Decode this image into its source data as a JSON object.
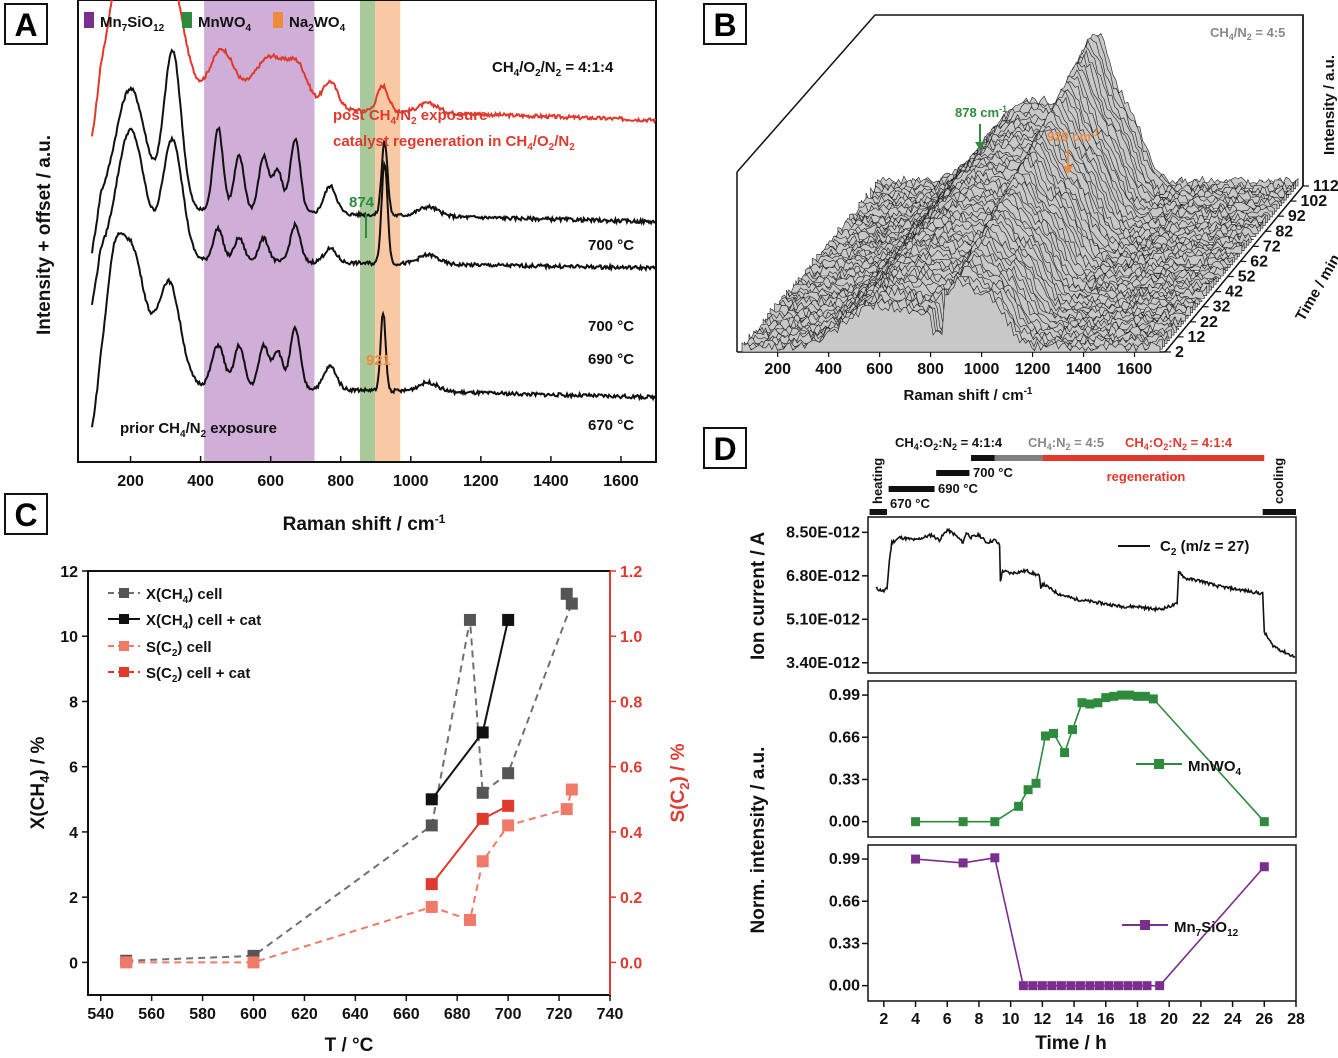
{
  "panels": {
    "a": "A",
    "b": "B",
    "c": "C",
    "d": "D"
  },
  "colors": {
    "red": "#e03a2f",
    "black": "#111111",
    "gray": "#707070",
    "green": "#2e8b3e",
    "orange": "#f08a3c",
    "purple": "#7a2f8e",
    "salmon": "#ef7a68",
    "mn7sio12_band": "#cfaed8",
    "mnwo4_band": "#a9c99a",
    "na2wo4_band": "#f8c9a4"
  },
  "panel_a": {
    "legend": [
      {
        "label": "Mn7SiO12",
        "color": "#7a2f8e"
      },
      {
        "label": "MnWO4",
        "color": "#2e8b3e"
      },
      {
        "label": "Na2WO4",
        "color": "#f08a3c"
      }
    ],
    "condition": "CH4/O2/N2 = 4:1:4",
    "red_note_1": "post CH4/N2 exposure",
    "red_note_2": "catalyst regeneration in CH4/O2/N2",
    "bottom_note": "prior CH4/N2 exposure",
    "peak_874": "874",
    "peak_921": "921",
    "temp_labels": [
      "700 °C",
      "700 °C",
      "690 °C",
      "670 °C"
    ],
    "xlabel": "Raman shift / cm-1",
    "ylabel": "Intensity + offset / a.u."
  },
  "panel_b": {
    "condition": "CH4/N2 = 4:5",
    "peak_878": "878 cm-1",
    "peak_929": "929 cm-1",
    "xlabel": "Raman shift / cm-1",
    "ylabel": "Intensity / a.u.",
    "timelabel": "Time / min",
    "xticks": [
      "200",
      "400",
      "600",
      "800",
      "1000",
      "1200",
      "1400",
      "1600"
    ],
    "timeticks": [
      "2",
      "12",
      "22",
      "32",
      "42",
      "52",
      "62",
      "72",
      "82",
      "92",
      "102",
      "112"
    ]
  },
  "panel_c": {
    "xlabel": "T / °C",
    "ylabel_left": "X(CH4) / %",
    "ylabel_right": "S(C2) / %",
    "legend": [
      "X(CH4) cell",
      "X(CH4) cell + cat",
      "S(C2) cell",
      "S(C2) cell + cat"
    ]
  },
  "panel_d": {
    "seg_labels": {
      "c1": "CH4:O2:N2 = 4:1:4",
      "c2": "CH4:N2 = 4:5",
      "c3": "CH4:O2:N2 = 4:1:4",
      "heating": "heating",
      "cooling": "cooling",
      "regeneration": "regeneration",
      "t670": "670 °C",
      "t690": "690 °C",
      "t700": "700 °C"
    },
    "ion_ylabel": "Ion current / A",
    "ion_legend": "C2 (m/z = 27)",
    "norm_ylabel": "Norm. intensity / a.u.",
    "mnwo4_legend": "MnWO4",
    "mn7_legend": "Mn7SiO12",
    "xlabel": "Time / h"
  },
  "chart_data": [
    {
      "panel": "A",
      "type": "line",
      "xlabel": "Raman shift / cm-1",
      "ylabel": "Intensity + offset / a.u.",
      "xlim": [
        50,
        1700
      ],
      "xticks": [
        200,
        400,
        600,
        800,
        1000,
        1200,
        1400,
        1600
      ],
      "bands": [
        {
          "name": "Mn7SiO12",
          "from": 410,
          "to": 725
        },
        {
          "name": "MnWO4",
          "from": 855,
          "to": 898
        },
        {
          "name": "Na2WO4",
          "from": 898,
          "to": 970
        }
      ],
      "series": [
        {
          "name": "700 °C",
          "color": "#e03a2f",
          "offset": 0.74,
          "peaks": [
            [
              230,
              0.28,
              80
            ],
            [
              310,
              0.22,
              60
            ],
            [
              170,
              0.16,
              50
            ],
            [
              460,
              0.12,
              50
            ],
            [
              600,
              0.11,
              70
            ],
            [
              680,
              0.07,
              40
            ],
            [
              770,
              0.06,
              30
            ],
            [
              920,
              0.055,
              22
            ],
            [
              1050,
              0.02,
              40
            ]
          ],
          "base": 0.04
        },
        {
          "name": "700 °C",
          "color": "#111111",
          "offset": 0.52,
          "peaks": [
            [
              200,
              0.26,
              60
            ],
            [
              320,
              0.34,
              35
            ],
            [
              450,
              0.18,
              20
            ],
            [
              510,
              0.12,
              20
            ],
            [
              580,
              0.12,
              20
            ],
            [
              620,
              0.09,
              20
            ],
            [
              670,
              0.16,
              20
            ],
            [
              770,
              0.06,
              25
            ],
            [
              925,
              0.16,
              12
            ],
            [
              1050,
              0.02,
              40
            ]
          ],
          "base": 0.03
        },
        {
          "name": "690 °C",
          "color": "#111111",
          "offset": 0.42,
          "peaks": [
            [
              200,
              0.28,
              55
            ],
            [
              320,
              0.26,
              40
            ],
            [
              450,
              0.07,
              20
            ],
            [
              510,
              0.05,
              20
            ],
            [
              580,
              0.05,
              20
            ],
            [
              670,
              0.08,
              20
            ],
            [
              770,
              0.03,
              25
            ],
            [
              925,
              0.22,
              12
            ],
            [
              1050,
              0.02,
              40
            ]
          ],
          "base": 0.02
        },
        {
          "name": "670 °C",
          "color": "#111111",
          "offset": 0.14,
          "peaks": [
            [
              150,
              0.16,
              30
            ],
            [
              200,
              0.3,
              55
            ],
            [
              310,
              0.22,
              45
            ],
            [
              450,
              0.09,
              25
            ],
            [
              510,
              0.09,
              20
            ],
            [
              580,
              0.09,
              20
            ],
            [
              620,
              0.08,
              20
            ],
            [
              670,
              0.13,
              20
            ],
            [
              770,
              0.05,
              25
            ],
            [
              921,
              0.17,
              10
            ],
            [
              1050,
              0.02,
              40
            ]
          ],
          "base": 0.03
        }
      ]
    },
    {
      "panel": "C",
      "type": "line",
      "xlabel": "T / °C",
      "ylabel": "X(CH4) / %",
      "y2label": "S(C2) / %",
      "xlim": [
        535,
        740
      ],
      "ylim": [
        -1,
        12
      ],
      "y2lim": [
        -0.1,
        1.2
      ],
      "xticks": [
        540,
        560,
        580,
        600,
        620,
        640,
        660,
        680,
        700,
        720,
        740
      ],
      "yticks": [
        0,
        2,
        4,
        6,
        8,
        10,
        12
      ],
      "y2ticks": [
        0.0,
        0.2,
        0.4,
        0.6,
        0.8,
        1.0,
        1.2
      ],
      "series": [
        {
          "name": "X(CH4) cell",
          "axis": "left",
          "color": "#707070",
          "dash": true,
          "x": [
            550,
            600,
            670,
            685,
            690,
            700,
            723,
            725
          ],
          "y": [
            0.05,
            0.2,
            4.2,
            10.5,
            5.2,
            5.8,
            11.3,
            11.0
          ],
          "order": [
            0,
            1,
            2,
            3,
            4,
            5,
            7,
            6
          ]
        },
        {
          "name": "X(CH4) cell + cat",
          "axis": "left",
          "color": "#111111",
          "dash": false,
          "x": [
            670,
            690,
            700
          ],
          "y": [
            5.0,
            7.05,
            10.5
          ]
        },
        {
          "name": "S(C2) cell",
          "axis": "right",
          "color": "#ef7a68",
          "dash": true,
          "x": [
            550,
            600,
            670,
            685,
            690,
            700,
            723,
            725
          ],
          "y": [
            0.0,
            0.0,
            0.17,
            0.13,
            0.31,
            0.42,
            0.47,
            0.53
          ]
        },
        {
          "name": "S(C2) cell + cat",
          "axis": "right",
          "color": "#e03a2f",
          "dash": false,
          "x": [
            670,
            690,
            700
          ],
          "y": [
            0.24,
            0.44,
            0.48
          ]
        }
      ]
    },
    {
      "panel": "D-ion",
      "type": "line",
      "ylabel": "Ion current / A",
      "ylim": [
        3e-12,
        9.1e-12
      ],
      "yticks": [
        "3.40E-012",
        "5.10E-012",
        "6.80E-012",
        "8.50E-012"
      ],
      "ytick_values": [
        3.4e-12,
        5.1e-12,
        6.8e-12,
        8.5e-12
      ],
      "series": [
        {
          "name": "C2 (m/z = 27)",
          "color": "#111111",
          "x": [
            1.5,
            2.0,
            2.2,
            2.35,
            2.5,
            3.0,
            4.0,
            5.0,
            5.5,
            6.0,
            6.5,
            7.0,
            7.2,
            7.5,
            8.0,
            8.5,
            9.0,
            9.3,
            9.35,
            9.5,
            10.0,
            11.0,
            11.8,
            11.9,
            12.0,
            13.0,
            14.0,
            15.0,
            16.0,
            17.0,
            18.0,
            19.0,
            19.5,
            20.0,
            20.5,
            20.6,
            21.0,
            22.0,
            23.0,
            24.0,
            25.0,
            25.9,
            26.0,
            26.5,
            27.0,
            28.0
          ],
          "y": [
            6.3,
            6.2,
            6.3,
            7.4,
            8.1,
            8.3,
            8.2,
            8.4,
            8.2,
            8.6,
            8.4,
            8.1,
            8.5,
            8.3,
            8.4,
            8.1,
            8.2,
            8.0,
            6.6,
            7.0,
            6.9,
            7.0,
            6.8,
            6.3,
            6.5,
            6.1,
            5.9,
            5.8,
            5.7,
            5.6,
            5.6,
            5.5,
            5.5,
            5.6,
            5.7,
            7.0,
            6.7,
            6.6,
            6.4,
            6.3,
            6.2,
            6.1,
            4.6,
            4.1,
            3.9,
            3.6
          ]
        }
      ]
    },
    {
      "panel": "D-MnWO4",
      "type": "line",
      "ylabel": "Norm. intensity / a.u.",
      "xlim": [
        1,
        28
      ],
      "ylim": [
        -0.12,
        1.1
      ],
      "yticks": [
        0.0,
        0.33,
        0.66,
        0.99
      ],
      "series": [
        {
          "name": "MnWO4",
          "color": "#2e8b3e",
          "x": [
            4,
            7,
            9,
            10.5,
            11.1,
            11.6,
            12.2,
            12.7,
            13.4,
            13.9,
            14.5,
            15,
            15.5,
            16,
            16.5,
            17,
            17.5,
            18,
            18.5,
            19,
            26
          ],
          "y": [
            0.0,
            0.0,
            0.0,
            0.12,
            0.25,
            0.3,
            0.67,
            0.69,
            0.54,
            0.72,
            0.93,
            0.92,
            0.93,
            0.97,
            0.98,
            0.99,
            0.99,
            0.98,
            0.98,
            0.96,
            0.0
          ]
        }
      ]
    },
    {
      "panel": "D-Mn7SiO12",
      "type": "line",
      "ylabel": "Norm. intensity / a.u.",
      "xlabel": "Time / h",
      "xlim": [
        1,
        28
      ],
      "ylim": [
        -0.12,
        1.1
      ],
      "yticks": [
        0.0,
        0.33,
        0.66,
        0.99
      ],
      "xticks": [
        2,
        4,
        6,
        8,
        10,
        12,
        14,
        16,
        18,
        20,
        22,
        24,
        26,
        28
      ],
      "series": [
        {
          "name": "Mn7SiO12",
          "color": "#7a2f8e",
          "x": [
            4,
            7,
            9,
            10.8,
            11.4,
            12,
            12.6,
            13.2,
            13.8,
            14.4,
            15,
            15.6,
            16.2,
            16.8,
            17.4,
            18,
            18.6,
            19.4,
            26
          ],
          "y": [
            0.99,
            0.96,
            1.0,
            0.0,
            0.0,
            0.0,
            0.0,
            0.0,
            0.0,
            0.0,
            0.0,
            0.0,
            0.0,
            0.0,
            0.0,
            0.0,
            0.0,
            0.0,
            0.93
          ]
        }
      ]
    }
  ]
}
